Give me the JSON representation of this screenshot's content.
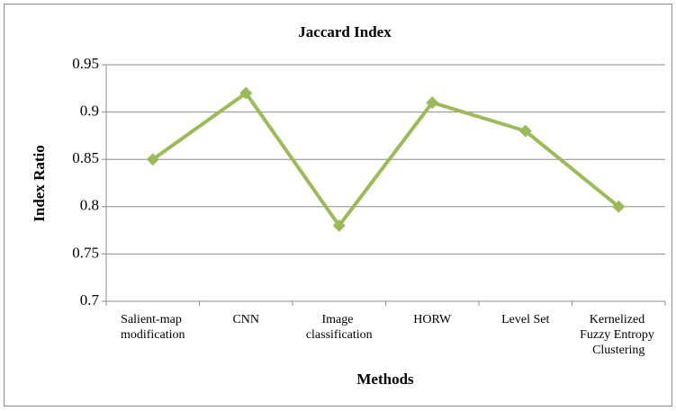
{
  "chart_data": {
    "type": "line",
    "title": "Jaccard Index",
    "x_label": "Methods",
    "y_label": "Index Ratio",
    "categories": [
      "Salient-map modification",
      "CNN",
      "Image classification",
      "HORW",
      "Level Set",
      "Kernelized Fuzzy Entropy Clustering"
    ],
    "series": [
      {
        "name": "Jaccard Index",
        "color": "#9bbb59",
        "values": [
          0.85,
          0.92,
          0.78,
          0.91,
          0.88,
          0.8
        ]
      }
    ],
    "ylim": [
      0.7,
      0.95
    ],
    "yticks": [
      0.7,
      0.75,
      0.8,
      0.85,
      0.9,
      0.95
    ],
    "grid": true
  }
}
